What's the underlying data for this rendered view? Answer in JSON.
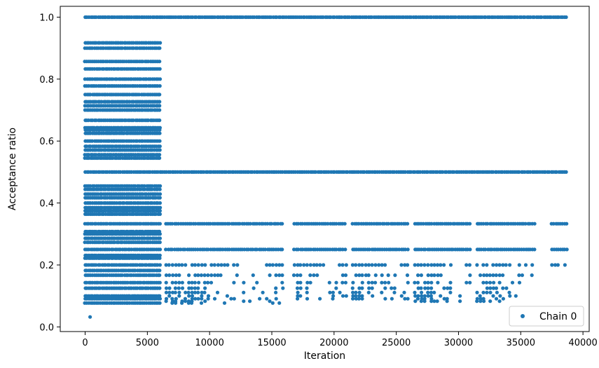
{
  "chart_data": {
    "type": "scatter",
    "title": "",
    "xlabel": "Iteration",
    "ylabel": "Acceptance ratio",
    "xlim": [
      -2000,
      40500
    ],
    "ylim": [
      -0.015,
      1.035
    ],
    "x_ticks": [
      0,
      5000,
      10000,
      15000,
      20000,
      25000,
      30000,
      35000,
      40000
    ],
    "x_tick_labels": [
      "0",
      "5000",
      "10000",
      "15000",
      "20000",
      "25000",
      "30000",
      "35000",
      "40000"
    ],
    "y_ticks": [
      0.0,
      0.2,
      0.4,
      0.6,
      0.8,
      1.0
    ],
    "y_tick_labels": [
      "0.0",
      "0.2",
      "0.4",
      "0.6",
      "0.8",
      "1.0"
    ],
    "grid": false,
    "legend_position": "bottom-right",
    "marker_color": "#1f77b4",
    "series": [
      {
        "name": "Chain 0",
        "segments": [
          {
            "x_range": [
              0,
              6100
            ],
            "y_levels": [
              1.0,
              0.917,
              0.9,
              0.857,
              0.833,
              0.8,
              0.778,
              0.75,
              0.727,
              0.714,
              0.7,
              0.667,
              0.643,
              0.636,
              0.625,
              0.6,
              0.583,
              0.571,
              0.556,
              0.545,
              0.5,
              0.455,
              0.444,
              0.429,
              0.417,
              0.4,
              0.385,
              0.375,
              0.364,
              0.333,
              0.308,
              0.3,
              0.286,
              0.273,
              0.25,
              0.231,
              0.222,
              0.2,
              0.182,
              0.167,
              0.143,
              0.125,
              0.1,
              0.091,
              0.077
            ],
            "min_y": 0.032
          },
          {
            "x_range": [
              6100,
              38700
            ],
            "y_levels": [
              1.0,
              0.5
            ]
          },
          {
            "x_range": [
              6500,
              16000
            ],
            "y_levels": [
              0.333,
              0.25,
              0.2,
              0.167,
              0.143,
              0.125,
              0.111,
              0.1,
              0.091,
              0.083,
              0.077
            ]
          },
          {
            "x_range": [
              16800,
              21000
            ],
            "y_levels": [
              0.333,
              0.25,
              0.2,
              0.167,
              0.143,
              0.125,
              0.111,
              0.1,
              0.091
            ]
          },
          {
            "x_range": [
              21500,
              26000
            ],
            "y_levels": [
              0.333,
              0.25,
              0.2,
              0.167,
              0.143,
              0.125,
              0.111,
              0.1,
              0.091
            ]
          },
          {
            "x_range": [
              26500,
              31000
            ],
            "y_levels": [
              0.333,
              0.25,
              0.2,
              0.167,
              0.143,
              0.125,
              0.111,
              0.1,
              0.091,
              0.083
            ]
          },
          {
            "x_range": [
              31500,
              36100
            ],
            "y_levels": [
              0.333,
              0.25,
              0.2,
              0.167,
              0.143,
              0.125,
              0.111,
              0.1,
              0.091,
              0.083
            ]
          },
          {
            "x_range": [
              37500,
              38700
            ],
            "y_levels": [
              0.333,
              0.25,
              0.2
            ]
          }
        ]
      }
    ]
  }
}
